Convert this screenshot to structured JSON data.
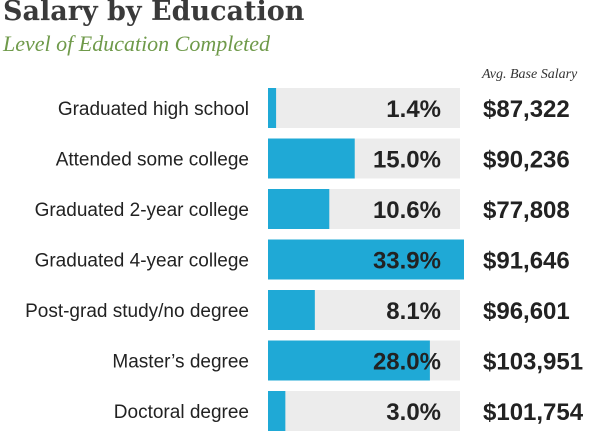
{
  "colors": {
    "bar": "#1fa9d6",
    "track": "#ececec",
    "title": "#3a3a3a",
    "subtitle": "#6f9a4a",
    "text": "#222222"
  },
  "chart_data": {
    "type": "bar",
    "orientation": "horizontal",
    "title": "Salary by Education",
    "subtitle": "Level of Education Completed",
    "value_column_header": "Avg. Base Salary",
    "xlim": [
      0,
      33.9
    ],
    "categories": [
      "Graduated high school",
      "Attended some college",
      "Graduated 2-year college",
      "Graduated 4-year college",
      "Post-grad study/no degree",
      "Master’s degree",
      "Doctoral degree"
    ],
    "values": [
      1.4,
      15.0,
      10.6,
      33.9,
      8.1,
      28.0,
      3.0
    ],
    "value_labels": [
      "1.4%",
      "15.0%",
      "10.6%",
      "33.9%",
      "8.1%",
      "28.0%",
      "3.0%"
    ],
    "salaries": [
      "$87,322",
      "$90,236",
      "$77,808",
      "$91,646",
      "$96,601",
      "$103,951",
      "$101,754"
    ]
  }
}
